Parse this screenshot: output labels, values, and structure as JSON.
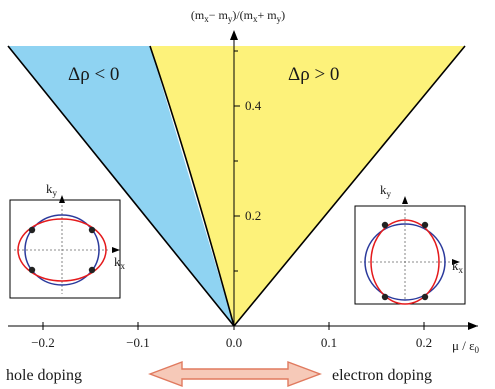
{
  "y_axis_label": {
    "prefix": "(m",
    "s1": "x",
    "mid": "− m",
    "s2": "y",
    "mid2": ")/(m",
    "s3": "x",
    "mid3": "+ m",
    "s4": "y",
    "suffix": ")"
  },
  "x_axis_label": {
    "mu": "μ / ε",
    "sub": "0"
  },
  "x_ticks": [
    "−0.2",
    "−0.1",
    "0.0",
    "0.1",
    "0.2"
  ],
  "y_ticks": [
    "0.2",
    "0.4"
  ],
  "regions": {
    "left": "Δρ < 0",
    "right": "Δρ > 0"
  },
  "bottom": {
    "hole": "hole doping",
    "electron": "electron doping"
  },
  "inset_labels": {
    "k": "k",
    "x": "x",
    "y": "y"
  },
  "colors": {
    "blue_region": "#8fd3f2",
    "yellow_region": "#fdf27a",
    "arrow_fill": "#f6c9b8",
    "arrow_stroke": "#e07a5f",
    "red_curve": "#e41a1c",
    "blue_curve": "#2b3a9c"
  }
}
